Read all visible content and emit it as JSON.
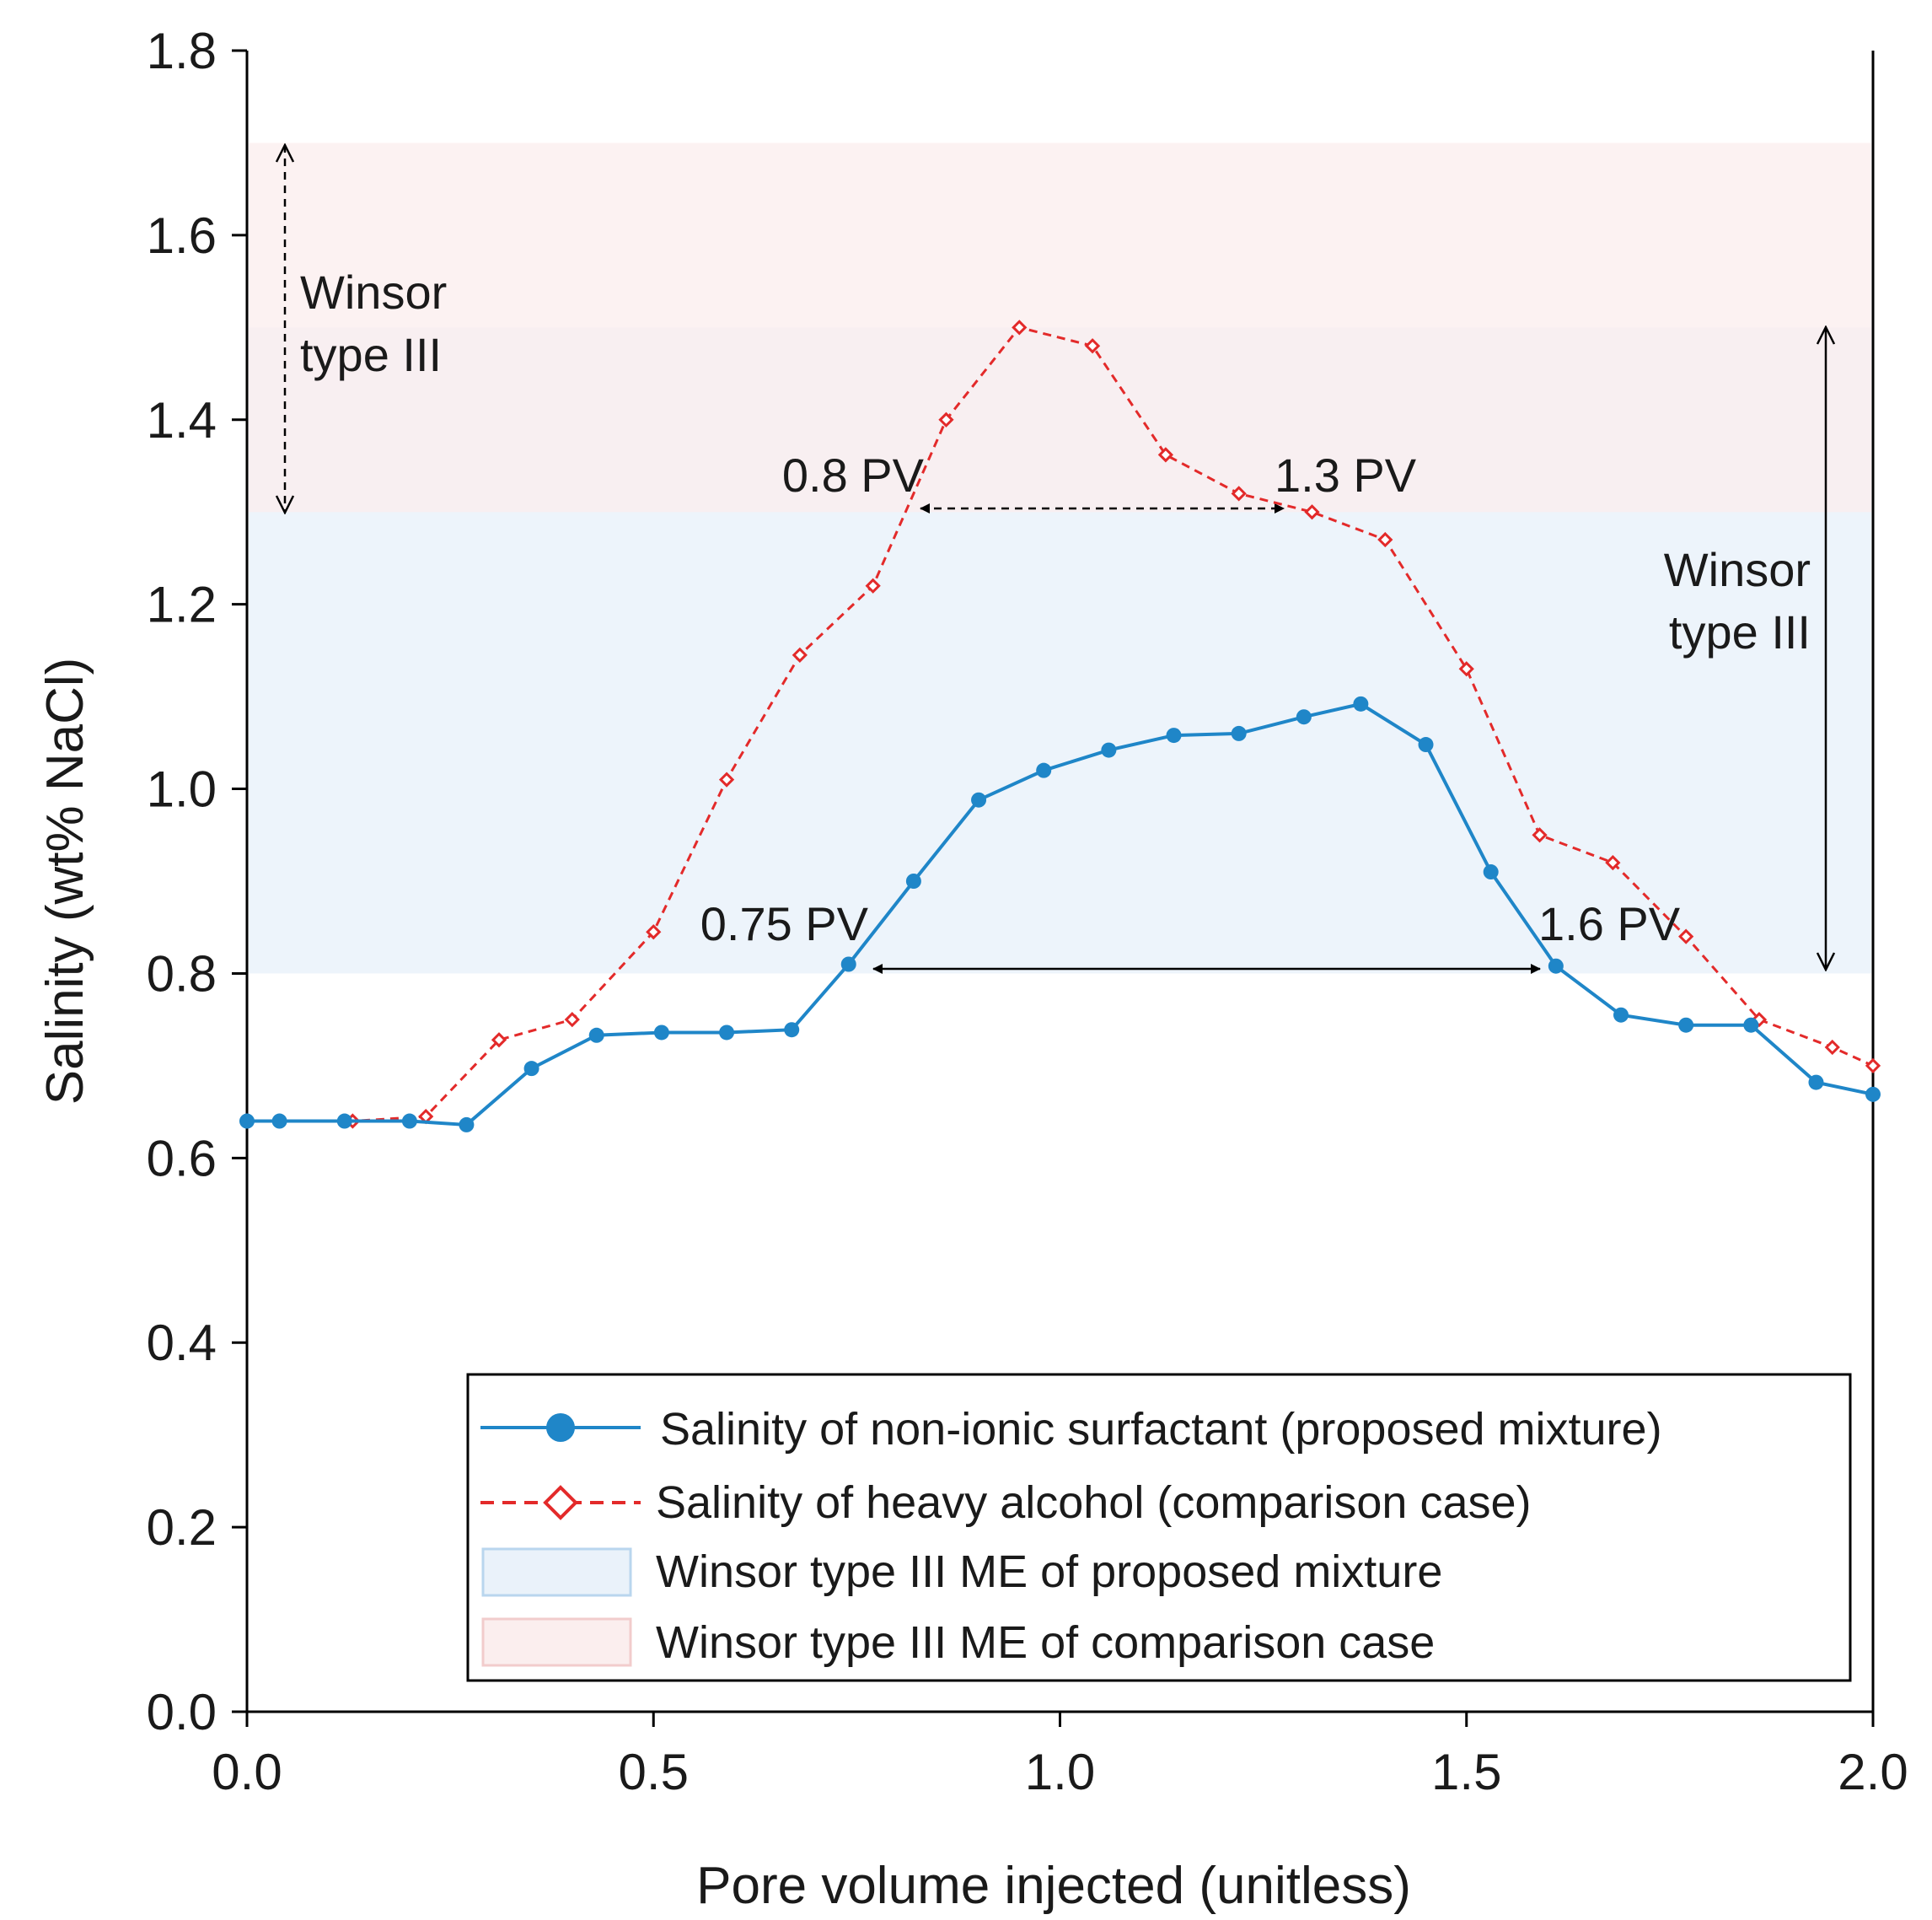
{
  "chart_data": {
    "type": "line",
    "title": "",
    "xlabel": "Pore volume injected (unitless)",
    "ylabel": "Salinity (wt% NaCl)",
    "xlim": [
      0.0,
      2.0
    ],
    "ylim": [
      0.0,
      1.8
    ],
    "x_ticks": [
      "0.0",
      "0.5",
      "1.0",
      "1.5",
      "2.0"
    ],
    "y_ticks": [
      "0.0",
      "0.2",
      "0.4",
      "0.6",
      "0.8",
      "1.0",
      "1.2",
      "1.4",
      "1.6",
      "1.8"
    ],
    "x_tick_values": [
      0.0,
      0.5,
      1.0,
      1.5,
      2.0
    ],
    "y_tick_values": [
      0.0,
      0.2,
      0.4,
      0.6,
      0.8,
      1.0,
      1.2,
      1.4,
      1.6,
      1.8
    ],
    "grid": false,
    "legend_position": "bottom-right",
    "series": [
      {
        "name": "Salinity of non-ionic surfactant (proposed mixture)",
        "color": "#1f86c8",
        "marker": "filled-circle",
        "line_style": "solid",
        "x": [
          0.0,
          0.04,
          0.12,
          0.2,
          0.27,
          0.35,
          0.43,
          0.51,
          0.59,
          0.67,
          0.74,
          0.82,
          0.9,
          0.98,
          1.06,
          1.14,
          1.22,
          1.3,
          1.37,
          1.45,
          1.53,
          1.61,
          1.69,
          1.77,
          1.85,
          1.93,
          2.0
        ],
        "y": [
          0.64,
          0.64,
          0.64,
          0.64,
          0.636,
          0.697,
          0.733,
          0.736,
          0.736,
          0.739,
          0.81,
          0.9,
          0.988,
          1.02,
          1.042,
          1.058,
          1.06,
          1.078,
          1.092,
          1.048,
          0.91,
          0.808,
          0.755,
          0.744,
          0.744,
          0.682,
          0.669
        ]
      },
      {
        "name": "Salinity of heavy alcohol (comparison case)",
        "color": "#e32a2a",
        "marker": "open-diamond",
        "line_style": "dashed",
        "x": [
          0.0,
          0.04,
          0.13,
          0.22,
          0.31,
          0.4,
          0.5,
          0.59,
          0.68,
          0.77,
          0.86,
          0.95,
          1.04,
          1.13,
          1.22,
          1.31,
          1.4,
          1.5,
          1.59,
          1.68,
          1.77,
          1.86,
          1.95,
          2.0
        ],
        "y": [
          0.64,
          0.64,
          0.64,
          0.645,
          0.728,
          0.75,
          0.845,
          1.01,
          1.145,
          1.22,
          1.4,
          1.5,
          1.48,
          1.362,
          1.32,
          1.3,
          1.27,
          1.13,
          0.95,
          0.92,
          0.84,
          0.75,
          0.72,
          0.7
        ]
      }
    ],
    "bands": [
      {
        "name": "Winsor type III ME of proposed mixture",
        "y_range": [
          0.8,
          1.5
        ],
        "color": "#eaf2fa"
      },
      {
        "name": "Winsor type III ME of comparison case",
        "y_range": [
          1.3,
          1.7
        ],
        "color": "#fbeeee"
      }
    ],
    "annotations": [
      {
        "text": "0.8 PV",
        "x": 0.8,
        "y": 1.3
      },
      {
        "text": "1.3 PV",
        "x": 1.3,
        "y": 1.3
      },
      {
        "text": "0.75 PV",
        "x": 0.75,
        "y": 0.8
      },
      {
        "text": "1.6 PV",
        "x": 1.6,
        "y": 0.8
      }
    ],
    "range_labels": {
      "left_line1": "Winsor",
      "left_line2": "type III",
      "right_line1": "Winsor",
      "right_line2": "type III"
    }
  }
}
